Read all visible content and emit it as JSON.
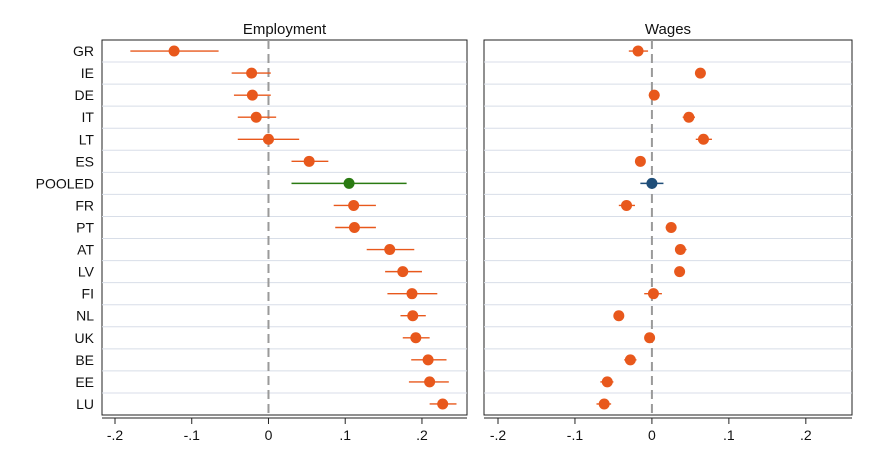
{
  "chart_data": {
    "type": "scatter",
    "categories": [
      "GR",
      "IE",
      "DE",
      "IT",
      "LT",
      "ES",
      "POOLED",
      "FR",
      "PT",
      "AT",
      "LV",
      "FI",
      "NL",
      "UK",
      "BE",
      "EE",
      "LU"
    ],
    "colors": {
      "country": "#e8581c",
      "pooled_employment": "#2a7a12",
      "pooled_wages": "#1f4e79",
      "zero_line": "#9a9a9a",
      "stripe": "#d8dee8"
    },
    "panels": [
      {
        "title": "Employment",
        "xlim": [
          -0.2,
          0.26
        ],
        "xticks": [
          -0.2,
          -0.1,
          0,
          0.1,
          0.2
        ],
        "xtick_labels": [
          "-.2",
          "-.1",
          "0",
          ".1",
          ".2"
        ],
        "estimate": [
          -0.123,
          -0.022,
          -0.021,
          -0.016,
          0.0,
          0.053,
          0.105,
          0.111,
          0.112,
          0.158,
          0.175,
          0.187,
          0.188,
          0.192,
          0.208,
          0.21,
          0.227
        ],
        "ci_low": [
          -0.18,
          -0.048,
          -0.045,
          -0.04,
          -0.04,
          0.03,
          0.03,
          0.085,
          0.087,
          0.128,
          0.152,
          0.155,
          0.172,
          0.175,
          0.186,
          0.183,
          0.21
        ],
        "ci_high": [
          -0.065,
          0.003,
          0.003,
          0.01,
          0.04,
          0.078,
          0.18,
          0.14,
          0.14,
          0.19,
          0.2,
          0.22,
          0.205,
          0.21,
          0.232,
          0.235,
          0.245
        ]
      },
      {
        "title": "Wages",
        "xlim": [
          -0.2,
          0.26
        ],
        "xticks": [
          -0.2,
          -0.1,
          0,
          0.1,
          0.2
        ],
        "xtick_labels": [
          "-.2",
          "-.1",
          "0",
          ".1",
          ".2"
        ],
        "estimate": [
          -0.018,
          0.063,
          0.003,
          0.048,
          0.067,
          -0.015,
          0.0,
          -0.033,
          0.025,
          0.037,
          0.036,
          0.002,
          -0.043,
          -0.003,
          -0.028,
          -0.058,
          -0.062
        ],
        "ci_low": [
          -0.03,
          0.058,
          -0.004,
          0.04,
          0.057,
          -0.02,
          -0.015,
          -0.043,
          0.018,
          0.03,
          0.03,
          -0.01,
          -0.047,
          -0.008,
          -0.036,
          -0.067,
          -0.072
        ],
        "ci_high": [
          -0.005,
          0.069,
          0.01,
          0.056,
          0.078,
          -0.01,
          0.015,
          -0.022,
          0.032,
          0.045,
          0.042,
          0.013,
          -0.04,
          0.002,
          -0.02,
          -0.05,
          -0.053
        ]
      }
    ]
  }
}
